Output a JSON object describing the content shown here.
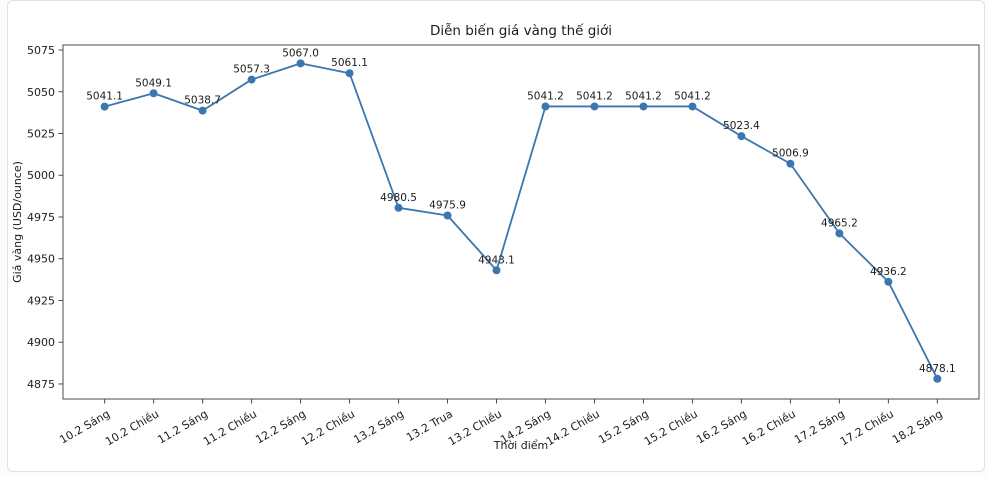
{
  "window": {
    "background": "#fcfcfc",
    "card_background": "#ffffff",
    "card_border_color": "#e2e2e2"
  },
  "chart_data": {
    "type": "line",
    "title": "Diễn biến giá vàng thế giới",
    "xlabel": "Thời điểm",
    "ylabel": "Giá vàng (USD/ounce)",
    "categories": [
      "10.2 Sáng",
      "10.2 Chiều",
      "11.2 Sáng",
      "11.2 Chiều",
      "12.2 Sáng",
      "12.2 Chiều",
      "13.2 Sáng",
      "13.2 Trua",
      "13.2 Chiều",
      "14.2 Sáng",
      "14.2 Chiều",
      "15.2 Sáng",
      "15.2 Chiều",
      "16.2 Sáng",
      "16.2 Chiều",
      "17.2 Sáng",
      "17.2 Chiều",
      "18.2 Sáng"
    ],
    "values": [
      5041.1,
      5049.1,
      5038.7,
      5057.3,
      5067.0,
      5061.1,
      4980.5,
      4975.9,
      4943.1,
      5041.2,
      5041.2,
      5041.2,
      5041.2,
      5023.4,
      5006.9,
      4965.2,
      4936.2,
      4878.1
    ],
    "point_label_decimals": 1,
    "yticks": [
      4875,
      4900,
      4925,
      4950,
      4975,
      5000,
      5025,
      5050,
      5075
    ],
    "ylim": [
      4866,
      5078
    ],
    "x_tick_rotation_deg": 30,
    "grid": false,
    "legend": "none",
    "line_color": "#3c76b0",
    "marker_color": "#3c76b0",
    "text_color": "#1c1c1c",
    "spine_color": "#4a4a4a"
  }
}
